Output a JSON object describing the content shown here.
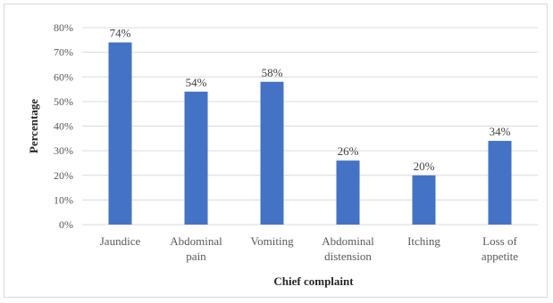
{
  "chart_data": {
    "type": "bar",
    "categories": [
      [
        "Jaundice"
      ],
      [
        "Abdominal",
        "pain"
      ],
      [
        "Vomiting"
      ],
      [
        "Abdominal",
        "distension"
      ],
      [
        "Itching"
      ],
      [
        "Loss of",
        "appetite"
      ]
    ],
    "values": [
      74,
      54,
      58,
      26,
      20,
      34
    ],
    "data_labels": [
      "74%",
      "54%",
      "58%",
      "26%",
      "20%",
      "34%"
    ],
    "yticks": [
      "0%",
      "10%",
      "20%",
      "30%",
      "40%",
      "50%",
      "60%",
      "70%",
      "80%"
    ],
    "ylim": [
      0,
      80
    ],
    "xlabel": "Chief complaint",
    "ylabel": "Percentage",
    "grid": true,
    "bar_color": "#4472c4",
    "grid_color": "#d9d9d9"
  }
}
